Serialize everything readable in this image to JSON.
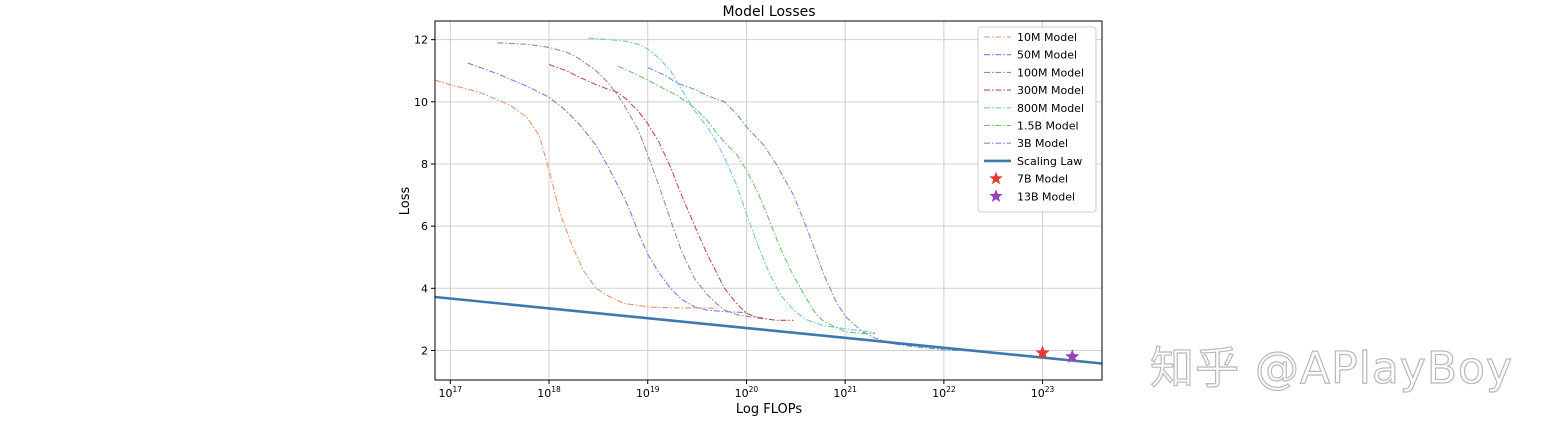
{
  "chart_data": {
    "type": "line",
    "title": "Model Losses",
    "xlabel": "Log FLOPs",
    "ylabel": "Loss",
    "x_scale": "log",
    "xlim": [
      7e+16,
      4e+23
    ],
    "ylim": [
      1.05,
      12.6
    ],
    "grid": true,
    "legend_position": "top-right",
    "x_ticks": [
      {
        "value": 1e+17,
        "label": "10",
        "exp": "17"
      },
      {
        "value": 1e+18,
        "label": "10",
        "exp": "18"
      },
      {
        "value": 1e+19,
        "label": "10",
        "exp": "19"
      },
      {
        "value": 1e+20,
        "label": "10",
        "exp": "20"
      },
      {
        "value": 1e+21,
        "label": "10",
        "exp": "21"
      },
      {
        "value": 1e+22,
        "label": "10",
        "exp": "22"
      },
      {
        "value": 1e+23,
        "label": "10",
        "exp": "23"
      }
    ],
    "y_ticks": [
      2,
      4,
      6,
      8,
      10,
      12
    ],
    "series": [
      {
        "name": "10M Model",
        "color": "#e8926b",
        "style": "dashdot",
        "x": [
          7e+16,
          1e+17,
          2e+17,
          4e+17,
          6e+17,
          8e+17,
          1e+18,
          1.3e+18,
          1.7e+18,
          2.2e+18,
          3e+18,
          4e+18,
          5e+18,
          6e+18,
          8e+18,
          1e+19,
          1.5e+19,
          2e+19,
          3e+19,
          5e+19
        ],
        "y": [
          10.7,
          10.55,
          10.3,
          9.9,
          9.5,
          8.9,
          7.8,
          6.4,
          5.4,
          4.6,
          4.0,
          3.75,
          3.6,
          3.5,
          3.45,
          3.4,
          3.38,
          3.37,
          3.37,
          3.36
        ]
      },
      {
        "name": "50M Model",
        "color": "#7b7be8",
        "style": "dashdot",
        "x": [
          1.5e+17,
          3e+17,
          6e+17,
          1e+18,
          1.5e+18,
          2e+18,
          3e+18,
          4e+18,
          5e+18,
          6e+18,
          7e+18,
          8e+18,
          1e+19,
          1.3e+19,
          1.7e+19,
          2.2e+19,
          3e+19,
          4e+19,
          6e+19,
          1e+20
        ],
        "y": [
          11.25,
          10.9,
          10.5,
          10.15,
          9.7,
          9.3,
          8.6,
          7.9,
          7.3,
          6.8,
          6.3,
          5.8,
          5.1,
          4.5,
          4.0,
          3.65,
          3.4,
          3.3,
          3.25,
          3.22
        ]
      },
      {
        "name": "100M Model",
        "color": "#a47fb5",
        "style": "dashdot",
        "x": [
          3e+17,
          6e+17,
          1e+18,
          1.5e+18,
          2e+18,
          3e+18,
          4e+18,
          5e+18,
          6e+18,
          8e+18,
          1e+19,
          1.3e+19,
          1.7e+19,
          2.2e+19,
          3e+19,
          4e+19,
          5e+19,
          6e+19,
          8e+19,
          1e+20,
          1.5e+20
        ],
        "y": [
          11.9,
          11.85,
          11.75,
          11.6,
          11.4,
          11.0,
          10.6,
          10.2,
          9.8,
          9.1,
          8.3,
          7.3,
          6.2,
          5.2,
          4.3,
          3.8,
          3.5,
          3.3,
          3.15,
          3.1,
          3.05
        ]
      },
      {
        "name": "300M Model",
        "color": "#c0504d",
        "style": "dashdot",
        "x": [
          1e+18,
          1.5e+18,
          2e+18,
          3e+18,
          4e+18,
          5e+18,
          6e+18,
          8e+18,
          1e+19,
          1.3e+19,
          1.7e+19,
          2.2e+19,
          3e+19,
          4e+19,
          5e+19,
          6e+19,
          8e+19,
          1e+20,
          1.3e+20,
          2e+20,
          3e+20
        ],
        "y": [
          11.2,
          11.0,
          10.8,
          10.55,
          10.4,
          10.3,
          10.1,
          9.7,
          9.3,
          8.7,
          7.9,
          7.0,
          6.0,
          5.1,
          4.5,
          4.0,
          3.5,
          3.2,
          3.05,
          2.97,
          2.97
        ]
      },
      {
        "name": "800M Model",
        "color": "#74c7d6",
        "style": "dashdot",
        "x": [
          2.5e+18,
          4e+18,
          6e+18,
          8e+18,
          1e+19,
          1.3e+19,
          1.7e+19,
          2.2e+19,
          3e+19,
          4e+19,
          5e+19,
          6e+19,
          8e+19,
          1e+20,
          1.3e+20,
          1.7e+20,
          2.2e+20,
          3e+20,
          4e+20,
          6e+20,
          1e+21,
          1.5e+21,
          2e+21
        ],
        "y": [
          12.05,
          12.0,
          11.95,
          11.85,
          11.7,
          11.4,
          11.0,
          10.4,
          9.7,
          9.2,
          8.7,
          8.2,
          7.3,
          6.4,
          5.4,
          4.5,
          3.8,
          3.3,
          3.0,
          2.8,
          2.7,
          2.62,
          2.58
        ]
      },
      {
        "name": "1.5B Model",
        "color": "#6cc46c",
        "style": "dashdot",
        "x": [
          5e+18,
          8e+18,
          1e+19,
          1.5e+19,
          2e+19,
          3e+19,
          4e+19,
          5e+19,
          6e+19,
          8e+19,
          1e+20,
          1.3e+20,
          1.7e+20,
          2.2e+20,
          3e+20,
          4e+20,
          5e+20,
          6e+20,
          8e+20,
          1e+21,
          1.5e+21,
          2e+21
        ],
        "y": [
          11.15,
          10.85,
          10.7,
          10.4,
          10.2,
          9.8,
          9.4,
          9.0,
          8.7,
          8.3,
          7.8,
          7.1,
          6.2,
          5.3,
          4.4,
          3.7,
          3.2,
          2.95,
          2.75,
          2.6,
          2.55,
          2.55
        ]
      },
      {
        "name": "3B Model",
        "color": "#6f93dc",
        "style": "dashdot",
        "x": [
          1e+19,
          1.5e+19,
          2e+19,
          3e+19,
          4e+19,
          6e+19,
          8e+19,
          1e+20,
          1.5e+20,
          2e+20,
          3e+20,
          4e+20,
          5e+20,
          6e+20,
          8e+20,
          1e+21,
          1.5e+21,
          2e+21,
          3e+21,
          5e+21,
          1e+22,
          2e+22
        ],
        "y": [
          11.1,
          10.85,
          10.6,
          10.4,
          10.2,
          10.0,
          9.6,
          9.2,
          8.6,
          8.0,
          7.0,
          6.0,
          5.2,
          4.5,
          3.6,
          3.1,
          2.6,
          2.4,
          2.22,
          2.12,
          2.02,
          1.98
        ]
      },
      {
        "name": "Scaling Law",
        "color": "#3e78ad",
        "style": "solid",
        "x": [
          7e+16,
          4e+23
        ],
        "y": [
          3.72,
          1.58
        ]
      }
    ],
    "markers": [
      {
        "name": "7B Model",
        "color": "#e03c31",
        "x": 1e+23,
        "y": 1.92
      },
      {
        "name": "13B Model",
        "color": "#9b3fbb",
        "x": 2e+23,
        "y": 1.8
      }
    ]
  },
  "watermark": "知乎 @APlayBoy"
}
